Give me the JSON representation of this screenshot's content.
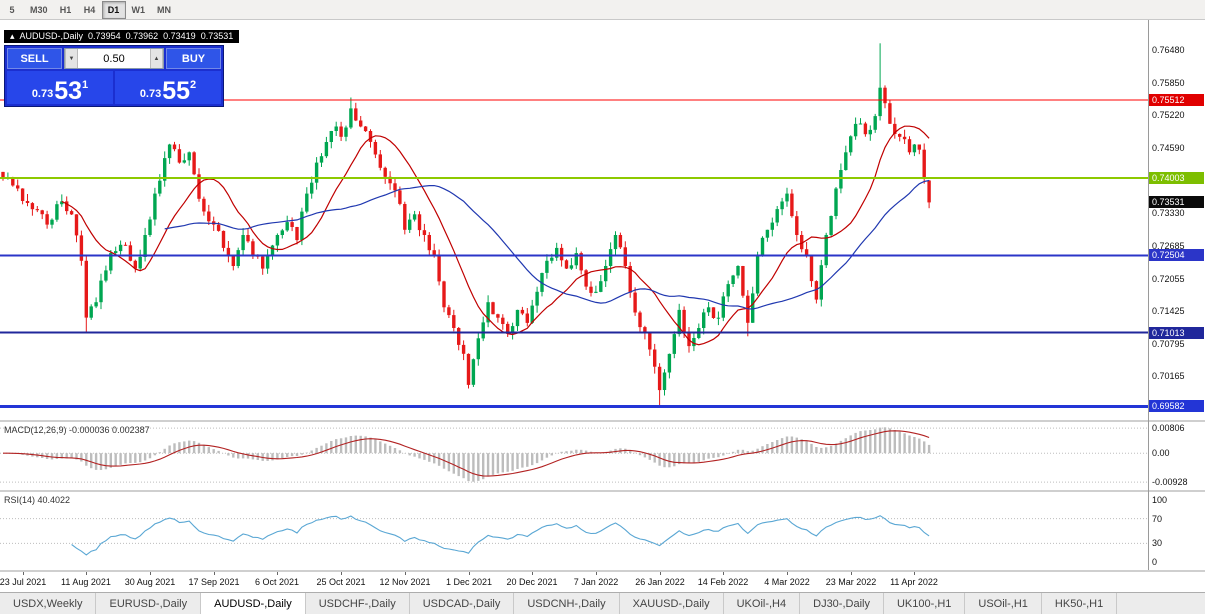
{
  "toolbar": {
    "timeframes": [
      "5",
      "M30",
      "H1",
      "H4",
      "D1",
      "W1",
      "MN"
    ],
    "active": "D1"
  },
  "ohlc_header": {
    "collapse_icon": "▴",
    "symbol": "AUDUSD-,Daily",
    "open": "0.73954",
    "high": "0.73962",
    "low": "0.73419",
    "close": "0.73531"
  },
  "trade_panel": {
    "sell_label": "SELL",
    "buy_label": "BUY",
    "lot": "0.50",
    "sell_price_prefix": "0.73",
    "sell_price_big": "53",
    "sell_price_sup": "1",
    "buy_price_prefix": "0.73",
    "buy_price_big": "55",
    "buy_price_sup": "2"
  },
  "indicators": {
    "macd_label": "MACD(12,26,9) -0.000036 0.002387",
    "rsi_label": "RSI(14) 40.4022"
  },
  "axes": {
    "price_ticks": [
      "0.76480",
      "0.75850",
      "0.75220",
      "0.74590",
      "0.73330",
      "0.72685",
      "0.72055",
      "0.71425",
      "0.70795",
      "0.70165"
    ],
    "macd_ticks": [
      "0.00806",
      "0.00",
      "-0.00928"
    ],
    "rsi_ticks": [
      "100",
      "70",
      "30",
      "0"
    ]
  },
  "hlines": [
    {
      "price": 0.75512,
      "label": "0.75512",
      "color": "#FF0000",
      "bg": "#E00000",
      "width": 1
    },
    {
      "price": 0.74003,
      "label": "0.74003",
      "color": "#8DC900",
      "bg": "#7DBE00",
      "width": 2
    },
    {
      "price": 0.72504,
      "label": "0.72504",
      "color": "#2B35C8",
      "bg": "#2B35C8",
      "width": 2
    },
    {
      "price": 0.71013,
      "label": "0.71013",
      "color": "#20279B",
      "bg": "#20279B",
      "width": 2
    },
    {
      "price": 0.69582,
      "label": "0.69582",
      "color": "#2335D6",
      "bg": "#2335D6",
      "width": 3
    }
  ],
  "current_price": {
    "value": 0.73531,
    "label": "0.73531",
    "bg": "#0A0A0A"
  },
  "tabs": [
    "USDX,Weekly",
    "EURUSD-,Daily",
    "AUDUSD-,Daily",
    "USDCHF-,Daily",
    "USDCAD-,Daily",
    "USDCNH-,Daily",
    "XAUUSD-,Daily",
    "UKOil-,H4",
    "DJ30-,Daily",
    "UK100-,H1",
    "USOil-,H1",
    "HK50-,H1"
  ],
  "active_tab": "AUDUSD-,Daily",
  "chart_data": {
    "type": "candlestick",
    "symbol": "AUDUSD",
    "timeframe": "Daily",
    "count": 190,
    "price_range": [
      0.6932,
      0.7706
    ],
    "x_ticks": [
      {
        "i": 4,
        "label": "23 Jul 2021"
      },
      {
        "i": 17,
        "label": "11 Aug 2021"
      },
      {
        "i": 30,
        "label": "30 Aug 2021"
      },
      {
        "i": 43,
        "label": "17 Sep 2021"
      },
      {
        "i": 56,
        "label": "6 Oct 2021"
      },
      {
        "i": 69,
        "label": "25 Oct 2021"
      },
      {
        "i": 82,
        "label": "12 Nov 2021"
      },
      {
        "i": 95,
        "label": "1 Dec 2021"
      },
      {
        "i": 108,
        "label": "20 Dec 2021"
      },
      {
        "i": 121,
        "label": "7 Jan 2022"
      },
      {
        "i": 134,
        "label": "26 Jan 2022"
      },
      {
        "i": 147,
        "label": "14 Feb 2022"
      },
      {
        "i": 160,
        "label": "4 Mar 2022"
      },
      {
        "i": 173,
        "label": "23 Mar 2022"
      },
      {
        "i": 186,
        "label": "11 Apr 2022"
      }
    ],
    "anchors": [
      [
        0,
        0.74
      ],
      [
        3,
        0.738
      ],
      [
        6,
        0.734
      ],
      [
        9,
        0.731
      ],
      [
        12,
        0.7355
      ],
      [
        14,
        0.733
      ],
      [
        16,
        0.724
      ],
      [
        17,
        0.713
      ],
      [
        19,
        0.716
      ],
      [
        22,
        0.7255
      ],
      [
        25,
        0.727
      ],
      [
        27,
        0.7225
      ],
      [
        29,
        0.729
      ],
      [
        32,
        0.7395
      ],
      [
        34,
        0.7465
      ],
      [
        36,
        0.743
      ],
      [
        38,
        0.745
      ],
      [
        40,
        0.736
      ],
      [
        43,
        0.731
      ],
      [
        45,
        0.7265
      ],
      [
        47,
        0.723
      ],
      [
        49,
        0.729
      ],
      [
        51,
        0.725
      ],
      [
        53,
        0.7225
      ],
      [
        56,
        0.729
      ],
      [
        58,
        0.7315
      ],
      [
        60,
        0.728
      ],
      [
        62,
        0.737
      ],
      [
        64,
        0.743
      ],
      [
        66,
        0.747
      ],
      [
        68,
        0.75
      ],
      [
        69,
        0.748
      ],
      [
        71,
        0.7535
      ],
      [
        73,
        0.75
      ],
      [
        75,
        0.747
      ],
      [
        77,
        0.742
      ],
      [
        79,
        0.739
      ],
      [
        81,
        0.735
      ],
      [
        82,
        0.73
      ],
      [
        84,
        0.733
      ],
      [
        86,
        0.729
      ],
      [
        88,
        0.725
      ],
      [
        90,
        0.715
      ],
      [
        92,
        0.711
      ],
      [
        94,
        0.706
      ],
      [
        95,
        0.7
      ],
      [
        97,
        0.709
      ],
      [
        99,
        0.716
      ],
      [
        101,
        0.713
      ],
      [
        103,
        0.71
      ],
      [
        105,
        0.7145
      ],
      [
        107,
        0.712
      ],
      [
        109,
        0.718
      ],
      [
        111,
        0.724
      ],
      [
        113,
        0.7265
      ],
      [
        115,
        0.7225
      ],
      [
        117,
        0.7255
      ],
      [
        119,
        0.719
      ],
      [
        121,
        0.718
      ],
      [
        123,
        0.723
      ],
      [
        125,
        0.729
      ],
      [
        127,
        0.723
      ],
      [
        129,
        0.714
      ],
      [
        131,
        0.71
      ],
      [
        133,
        0.7035
      ],
      [
        134,
        0.699
      ],
      [
        136,
        0.706
      ],
      [
        138,
        0.7145
      ],
      [
        140,
        0.7075
      ],
      [
        142,
        0.711
      ],
      [
        144,
        0.715
      ],
      [
        146,
        0.713
      ],
      [
        148,
        0.7195
      ],
      [
        150,
        0.723
      ],
      [
        152,
        0.712
      ],
      [
        154,
        0.725
      ],
      [
        156,
        0.73
      ],
      [
        158,
        0.734
      ],
      [
        160,
        0.737
      ],
      [
        162,
        0.729
      ],
      [
        164,
        0.725
      ],
      [
        166,
        0.7165
      ],
      [
        168,
        0.729
      ],
      [
        170,
        0.738
      ],
      [
        172,
        0.745
      ],
      [
        174,
        0.7505
      ],
      [
        176,
        0.7485
      ],
      [
        178,
        0.752
      ],
      [
        179,
        0.7575
      ],
      [
        181,
        0.7505
      ],
      [
        183,
        0.748
      ],
      [
        185,
        0.745
      ],
      [
        186,
        0.7465
      ],
      [
        187,
        0.7455
      ],
      [
        188,
        0.74
      ],
      [
        189,
        0.7353
      ]
    ],
    "wick_overrides": {
      "17": {
        "low": 0.7103
      },
      "71": {
        "high": 0.7556
      },
      "95": {
        "low": 0.6993
      },
      "134": {
        "low": 0.6961
      },
      "152": {
        "low": 0.7094
      },
      "179": {
        "high": 0.7661
      }
    },
    "last_candle": {
      "open": 0.73954,
      "high": 0.73962,
      "low": 0.73419,
      "close": 0.73531
    },
    "ma_fast_period": 13,
    "ma_slow_period": 34,
    "macd_range": [
      -0.0118,
      0.01
    ],
    "macd_values": {
      "main": -3.6e-05,
      "signal": 0.002387
    },
    "rsi_period": 14,
    "rsi_value": 40.4022,
    "rsi_levels": [
      70,
      30
    ],
    "colors": {
      "up": "#00A651",
      "down": "#E61919",
      "ma_fast": "#C00000",
      "ma_slow": "#2038B0",
      "macd_hist": "#BDBDBD",
      "macd_signal": "#B22222",
      "rsi": "#5AA7D4"
    }
  }
}
